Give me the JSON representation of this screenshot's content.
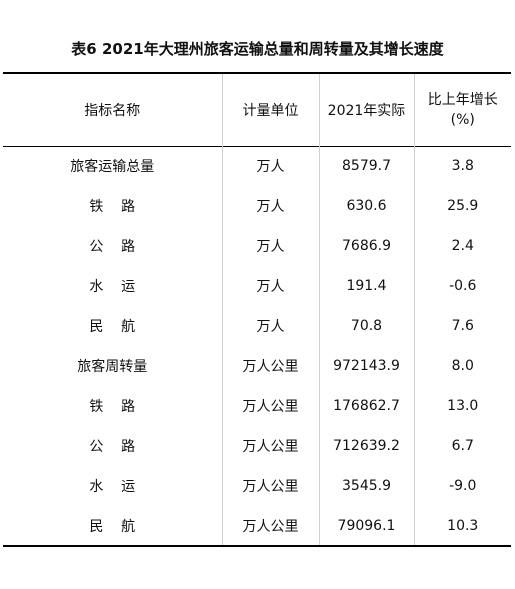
{
  "title": "表6  2021年大理州旅客运输总量和周转量及其增长速度",
  "headers": {
    "name": "指标名称",
    "unit": "计量单位",
    "actual": "2021年实际",
    "growth_line1": "比上年增长",
    "growth_line2": "(%)"
  },
  "rows": [
    {
      "name": "旅客运输总量",
      "unit": "万人",
      "actual": "8579.7",
      "growth": "3.8"
    },
    {
      "name": "铁    路",
      "unit": "万人",
      "actual": "630.6",
      "growth": "25.9"
    },
    {
      "name": "公    路",
      "unit": "万人",
      "actual": "7686.9",
      "growth": "2.4"
    },
    {
      "name": "水    运",
      "unit": "万人",
      "actual": "191.4",
      "growth": "-0.6"
    },
    {
      "name": "民    航",
      "unit": "万人",
      "actual": "70.8",
      "growth": "7.6"
    },
    {
      "name": "旅客周转量",
      "unit": "万人公里",
      "actual": "972143.9",
      "growth": "8.0"
    },
    {
      "name": "铁    路",
      "unit": "万人公里",
      "actual": "176862.7",
      "growth": "13.0"
    },
    {
      "name": "公    路",
      "unit": "万人公里",
      "actual": "712639.2",
      "growth": "6.7"
    },
    {
      "name": "水    运",
      "unit": "万人公里",
      "actual": "3545.9",
      "growth": "-9.0"
    },
    {
      "name": "民    航",
      "unit": "万人公里",
      "actual": "79096.1",
      "growth": "10.3"
    }
  ]
}
